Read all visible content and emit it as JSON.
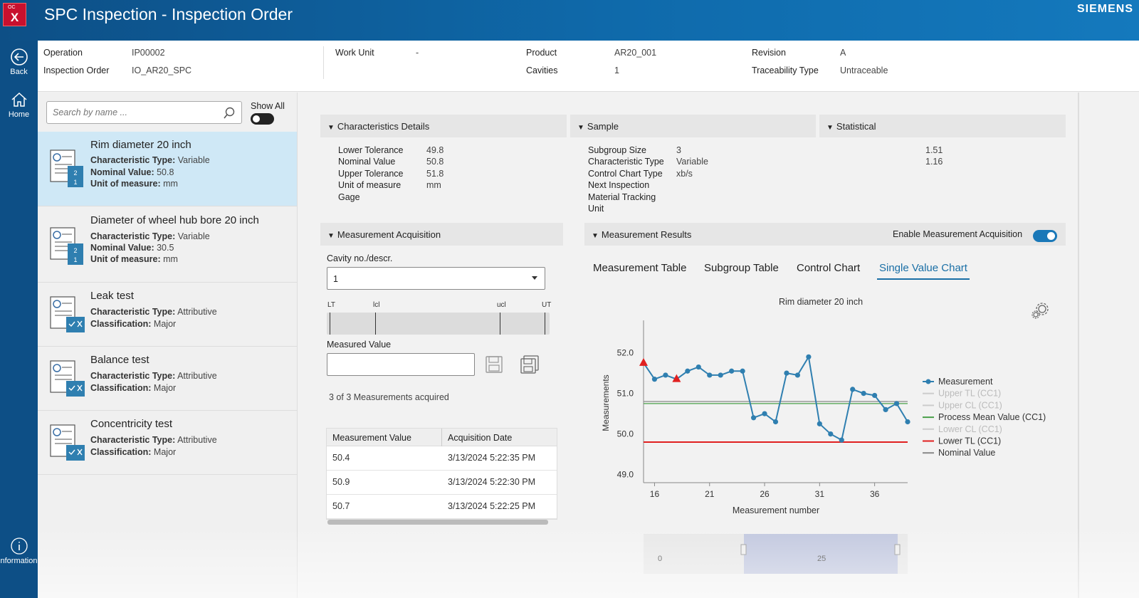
{
  "header": {
    "logo_big": "X",
    "logo_small": "OC",
    "title": "SPC Inspection - Inspection Order",
    "brand": "SIEMENS"
  },
  "rail": {
    "back": "Back",
    "home": "Home",
    "info": "nformation"
  },
  "info": {
    "operation_label": "Operation",
    "operation": "IP00002",
    "order_label": "Inspection Order",
    "order": "IO_AR20_SPC",
    "workunit_label": "Work Unit",
    "workunit": "-",
    "product_label": "Product",
    "product": "AR20_001",
    "cavities_label": "Cavities",
    "cavities": "1",
    "revision_label": "Revision",
    "revision": "A",
    "trace_label": "Traceability Type",
    "trace": "Untraceable"
  },
  "list": {
    "search_placeholder": "Search by name ...",
    "show_all": "Show All",
    "items": [
      {
        "title": "Rim diameter 20 inch",
        "r1l": "Characteristic Type:",
        "r1v": "Variable",
        "r2l": "Nominal Value:",
        "r2v": "50.8",
        "r3l": "Unit of measure:",
        "r3v": "mm"
      },
      {
        "title": "Diameter of wheel hub bore 20 inch",
        "r1l": "Characteristic Type:",
        "r1v": "Variable",
        "r2l": "Nominal Value:",
        "r2v": "30.5",
        "r3l": "Unit of measure:",
        "r3v": "mm"
      },
      {
        "title": "Leak test",
        "r1l": "Characteristic Type:",
        "r1v": "Attributive",
        "r2l": "Classification:",
        "r2v": "Major"
      },
      {
        "title": "Balance test",
        "r1l": "Characteristic Type:",
        "r1v": "Attributive",
        "r2l": "Classification:",
        "r2v": "Major"
      },
      {
        "title": "Concentricity test",
        "r1l": "Characteristic Type:",
        "r1v": "Attributive",
        "r2l": "Classification:",
        "r2v": "Major"
      }
    ]
  },
  "details": {
    "title": "Characteristics Details",
    "lower_tol_label": "Lower Tolerance",
    "lower_tol": "49.8",
    "nominal_label": "Nominal Value",
    "nominal": "50.8",
    "upper_tol_label": "Upper Tolerance",
    "upper_tol": "51.8",
    "unit_label": "Unit of measure",
    "unit": "mm",
    "gage_label": "Gage"
  },
  "sample": {
    "title": "Sample",
    "subgroup_label": "Subgroup Size",
    "subgroup": "3",
    "ctype_label": "Characteristic Type",
    "ctype": "Variable",
    "chart_type_label": "Control Chart Type",
    "chart_type": "xb/s",
    "next_label": "Next Inspection",
    "material_label": "Material Tracking",
    "unit_label": "Unit"
  },
  "statistical": {
    "title": "Statistical",
    "v1": "1.51",
    "v2": "1.16"
  },
  "acquisition": {
    "title": "Measurement Acquisition",
    "cavity_label": "Cavity no./descr.",
    "cavity_value": "1",
    "lt": "LT",
    "lcl": "lcl",
    "ucl": "ucl",
    "ut": "UT",
    "measured_label": "Measured Value",
    "acquired": "3 of 3 Measurements acquired",
    "table": {
      "col1": "Measurement Value",
      "col2": "Acquisition Date",
      "rows": [
        {
          "value": "50.4",
          "date": "3/13/2024 5:22:35 PM"
        },
        {
          "value": "50.9",
          "date": "3/13/2024 5:22:30 PM"
        },
        {
          "value": "50.7",
          "date": "3/13/2024 5:22:25 PM"
        }
      ]
    }
  },
  "results": {
    "title": "Measurement Results",
    "enable_label": "Enable Measurement Acquisition",
    "tabs": [
      "Measurement Table",
      "Subgroup Table",
      "Control Chart",
      "Single Value Chart"
    ]
  },
  "chart_data": {
    "type": "line",
    "title": "Rim diameter 20 inch",
    "xlabel": "Measurement number",
    "ylabel": "Measurements",
    "xlim": [
      15,
      39
    ],
    "ylim": [
      48.8,
      52.8
    ],
    "x_ticks": [
      16,
      21,
      26,
      31,
      36
    ],
    "y_ticks": [
      "49.0",
      "50.0",
      "51.0",
      "52.0"
    ],
    "series": [
      {
        "name": "Measurement",
        "color": "#2f7fb0",
        "x": [
          15,
          16,
          17,
          18,
          19,
          20,
          21,
          22,
          23,
          24,
          25,
          26,
          27,
          28,
          29,
          30,
          31,
          32,
          33,
          34,
          35,
          36,
          37,
          38,
          39
        ],
        "y": [
          51.75,
          51.35,
          51.45,
          51.35,
          51.55,
          51.65,
          51.45,
          51.45,
          51.55,
          51.55,
          50.4,
          50.5,
          50.3,
          51.5,
          51.45,
          51.9,
          50.25,
          50.0,
          49.85,
          51.1,
          51.0,
          50.95,
          50.6,
          50.75,
          50.3
        ],
        "out_of_control_x": [
          15,
          18
        ]
      }
    ],
    "lines": [
      {
        "name": "Upper TL (CC1)",
        "color": "#cccccc",
        "value": null,
        "muted": true
      },
      {
        "name": "Upper CL (CC1)",
        "color": "#cccccc",
        "value": null,
        "muted": true
      },
      {
        "name": "Process Mean Value (CC1)",
        "color": "#4aa04a",
        "value": 50.75
      },
      {
        "name": "Lower CL (CC1)",
        "color": "#cccccc",
        "value": null,
        "muted": true
      },
      {
        "name": "Lower TL (CC1)",
        "color": "#e02020",
        "value": 49.8
      },
      {
        "name": "Nominal Value",
        "color": "#888888",
        "value": 50.8
      }
    ],
    "navigator": {
      "labels": [
        "0",
        "25"
      ]
    }
  }
}
